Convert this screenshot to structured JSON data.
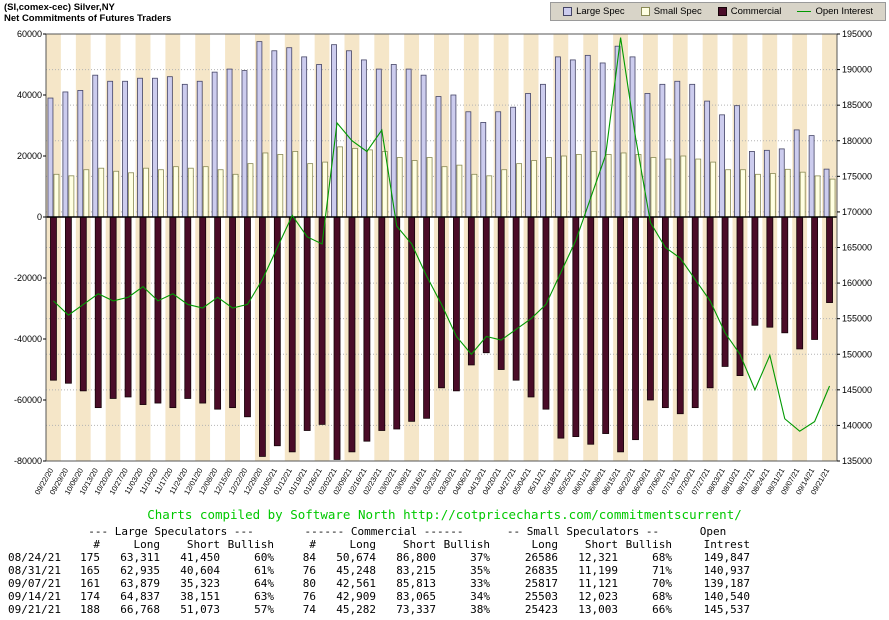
{
  "header": {
    "title": "(SI,comex-cec) Silver,NY",
    "subtitle": "Net Commitments of Futures Traders"
  },
  "legend": {
    "items": [
      {
        "label": "Large Spec",
        "color": "#ccccee",
        "border": "#444466",
        "type": "box"
      },
      {
        "label": "Small Spec",
        "color": "#ffffe2",
        "border": "#8a8a55",
        "type": "box"
      },
      {
        "label": "Commercial",
        "color": "#4a0c28",
        "border": "#150308",
        "type": "box"
      },
      {
        "label": "Open Interest",
        "color": "#009900",
        "type": "line"
      }
    ]
  },
  "chart_data": {
    "type": "bar",
    "title": "(SI,comex-cec) Silver,NY",
    "subtitle": "Net Commitments of Futures Traders",
    "legend_position": "top-right",
    "grid": "dotted-horizontal",
    "categories": [
      "09/22/20",
      "09/29/20",
      "10/06/20",
      "10/13/20",
      "10/20/20",
      "10/27/20",
      "11/03/20",
      "11/10/20",
      "11/17/20",
      "11/24/20",
      "12/01/20",
      "12/08/20",
      "12/15/20",
      "12/22/20",
      "12/29/20",
      "01/05/21",
      "01/12/21",
      "01/19/21",
      "01/26/21",
      "02/02/21",
      "02/09/21",
      "02/16/21",
      "02/23/21",
      "03/02/21",
      "03/09/21",
      "03/16/21",
      "03/23/21",
      "03/30/21",
      "04/06/21",
      "04/13/21",
      "04/20/21",
      "04/27/21",
      "05/04/21",
      "05/11/21",
      "05/18/21",
      "05/25/21",
      "06/01/21",
      "06/08/21",
      "06/15/21",
      "06/22/21",
      "06/29/21",
      "07/06/21",
      "07/13/21",
      "07/20/21",
      "07/27/21",
      "08/03/21",
      "08/10/21",
      "08/17/21",
      "08/24/21",
      "08/31/21",
      "09/07/21",
      "09/14/21",
      "09/21/21"
    ],
    "series": [
      {
        "name": "Large Spec",
        "type": "bar",
        "axis": "left",
        "color": "#ccccee",
        "border": "#444466",
        "values": [
          39000,
          41000,
          41500,
          46500,
          44500,
          44500,
          45500,
          45500,
          46000,
          43500,
          44500,
          47500,
          48500,
          48000,
          57500,
          54500,
          55500,
          52500,
          50000,
          56500,
          54500,
          51500,
          48500,
          50000,
          48500,
          46500,
          39500,
          40000,
          34500,
          31000,
          34500,
          36000,
          40500,
          43500,
          52500,
          51500,
          53000,
          50500,
          56000,
          52500,
          40500,
          43500,
          44500,
          43500,
          38000,
          33500,
          36500,
          21500,
          21861,
          22331,
          28556,
          26686,
          15695
        ]
      },
      {
        "name": "Small Spec",
        "type": "bar",
        "axis": "left",
        "color": "#ffffe2",
        "border": "#8a8a55",
        "values": [
          14000,
          13500,
          15500,
          16000,
          15000,
          14500,
          16000,
          15500,
          16500,
          16000,
          16500,
          15500,
          14000,
          17500,
          21000,
          20500,
          21500,
          17500,
          18000,
          23000,
          22500,
          22000,
          21500,
          19500,
          18500,
          19500,
          16500,
          17000,
          14000,
          13500,
          15500,
          17500,
          18500,
          19500,
          20000,
          20500,
          21500,
          20500,
          21000,
          20500,
          19500,
          19000,
          20000,
          19000,
          18000,
          15500,
          15500,
          14000,
          14265,
          15636,
          14696,
          13480,
          12420
        ]
      },
      {
        "name": "Commercial",
        "type": "bar",
        "axis": "left",
        "color": "#4a0c28",
        "border": "#150308",
        "values": [
          -53500,
          -54500,
          -57000,
          -62500,
          -59500,
          -59000,
          -61500,
          -61000,
          -62500,
          -59500,
          -61000,
          -63000,
          -62500,
          -65500,
          -78500,
          -75000,
          -77000,
          -70000,
          -68000,
          -79500,
          -77000,
          -73500,
          -70000,
          -69500,
          -67000,
          -66000,
          -56000,
          -57000,
          -48500,
          -44500,
          -50000,
          -53500,
          -59000,
          -63000,
          -72500,
          -72000,
          -74500,
          -71000,
          -77000,
          -73000,
          -60000,
          -62500,
          -64500,
          -62500,
          -56000,
          -49000,
          -52000,
          -35500,
          -36126,
          -37967,
          -43252,
          -40156,
          -28055
        ]
      },
      {
        "name": "Open Interest",
        "type": "line",
        "axis": "right",
        "color": "#009900",
        "values": [
          157500,
          155500,
          157000,
          158500,
          157500,
          158000,
          159500,
          157500,
          158500,
          157000,
          156500,
          158000,
          156500,
          157000,
          160500,
          165000,
          169500,
          166500,
          165500,
          182500,
          180000,
          178500,
          181500,
          168000,
          165500,
          161000,
          157000,
          152500,
          150000,
          152500,
          152000,
          153500,
          155000,
          157000,
          161500,
          166000,
          172000,
          178000,
          194500,
          180500,
          168500,
          165000,
          163500,
          160500,
          157500,
          153000,
          150000,
          145000,
          149847,
          140937,
          139187,
          140540,
          145537
        ]
      }
    ],
    "left_axis": {
      "min": -80000,
      "max": 60000,
      "ticks": [
        60000,
        40000,
        20000,
        0,
        -20000,
        -40000,
        -60000,
        -80000
      ]
    },
    "right_axis": {
      "min": 135000,
      "max": 195000,
      "tick_step": 5000
    },
    "colors": {
      "stripe": "#f5e6c8",
      "stripe_alt": "#ffffff",
      "grid": "#b4b4b4",
      "zero_line": "#000000",
      "plot_border": "#555555"
    }
  },
  "credit": {
    "prefix": "Charts compiled by Software North  ",
    "url": "http://cotpricecharts.com/commitmentscurrent/"
  },
  "table": {
    "group_headers": [
      "--- Large Speculators ---",
      "------ Commercial ------",
      "-- Small Speculators --",
      "Open"
    ],
    "col_headers": [
      "",
      "#",
      "Long",
      "Short",
      "Bullish",
      "#",
      "Long",
      "Short",
      "Bullish",
      "Long",
      "Short",
      "Bullish",
      "Intrest"
    ],
    "rows": [
      [
        "08/24/21",
        "175",
        "63,311",
        "41,450",
        "60%",
        "84",
        "50,674",
        "86,800",
        "37%",
        "26586",
        "12,321",
        "68%",
        "149,847"
      ],
      [
        "08/31/21",
        "165",
        "62,935",
        "40,604",
        "61%",
        "76",
        "45,248",
        "83,215",
        "35%",
        "26835",
        "11,199",
        "71%",
        "140,937"
      ],
      [
        "09/07/21",
        "161",
        "63,879",
        "35,323",
        "64%",
        "80",
        "42,561",
        "85,813",
        "33%",
        "25817",
        "11,121",
        "70%",
        "139,187"
      ],
      [
        "09/14/21",
        "174",
        "64,837",
        "38,151",
        "63%",
        "76",
        "42,909",
        "83,065",
        "34%",
        "25503",
        "12,023",
        "68%",
        "140,540"
      ],
      [
        "09/21/21",
        "188",
        "66,768",
        "51,073",
        "57%",
        "74",
        "45,282",
        "73,337",
        "38%",
        "25423",
        "13,003",
        "66%",
        "145,537"
      ]
    ]
  }
}
